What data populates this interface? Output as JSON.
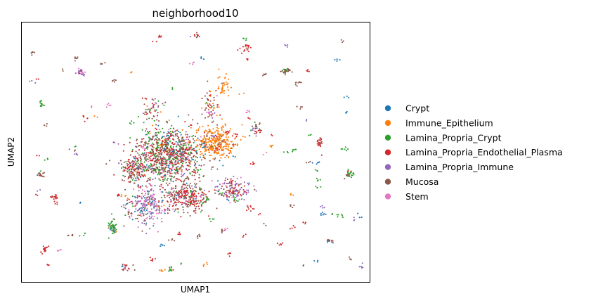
{
  "chart_data": {
    "type": "scatter",
    "title": "neighborhood10",
    "xlabel": "UMAP1",
    "ylabel": "UMAP2",
    "xticks": [],
    "yticks": [],
    "grid": false,
    "legend_position": "right-outside",
    "series": [
      {
        "name": "Crypt",
        "color": "#1f77b4"
      },
      {
        "name": "Immune_Epithelium",
        "color": "#ff7f0e"
      },
      {
        "name": "Lamina_Propria_Crypt",
        "color": "#2ca02c"
      },
      {
        "name": "Lamina_Propria_Endothelial_Plasma",
        "color": "#d62728"
      },
      {
        "name": "Lamina_Propria_Immune",
        "color": "#9467bd"
      },
      {
        "name": "Mucosa",
        "color": "#8c564b"
      },
      {
        "name": "Stem",
        "color": "#e377c2"
      }
    ]
  }
}
